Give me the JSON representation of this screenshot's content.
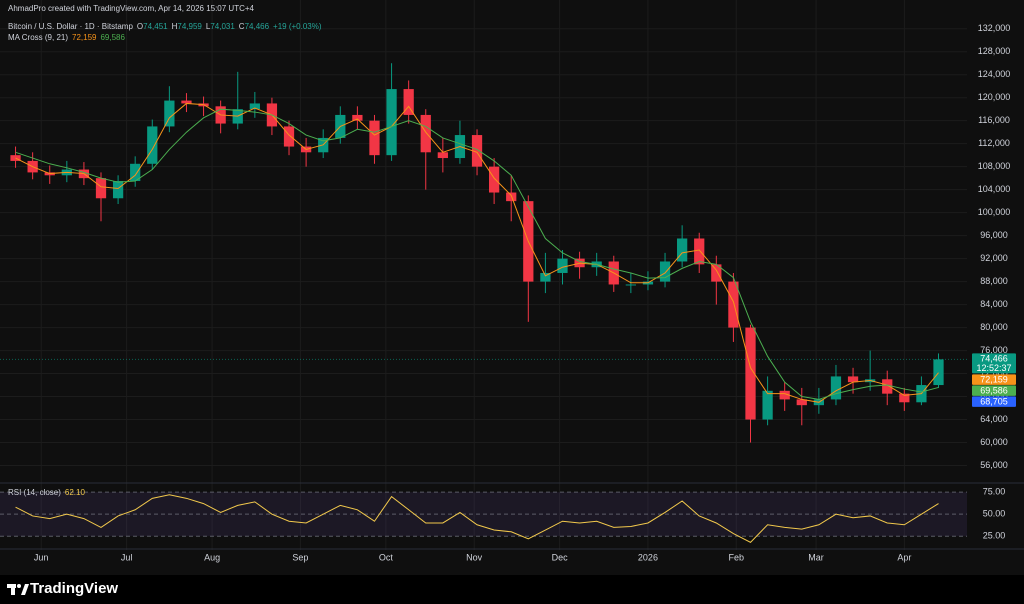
{
  "header": {
    "attribution": "AhmadPro created with TradingView.com, Apr 14, 2026 15:07 UTC+4",
    "symbol": "Bitcoin / U.S. Dollar · 1D · Bitstamp",
    "ohlc": [
      [
        "O",
        "74,451"
      ],
      [
        "H",
        "74,959"
      ],
      [
        "L",
        "74,031"
      ],
      [
        "C",
        "74,466"
      ]
    ],
    "change": "+19 (+0.03%)",
    "indicator": "MA Cross (9, 21)",
    "ma_fast": "72,159",
    "ma_slow": "69,586",
    "rsi_name": "RSI (14, close)",
    "rsi_value": "62.10"
  },
  "price_tags": [
    {
      "text": "74,466",
      "color": "#089981"
    },
    {
      "text": "72,159",
      "color": "#f7931a"
    },
    {
      "text": "69,586",
      "color": "#4caf50"
    },
    {
      "text": "68,705",
      "color": "#2962ff"
    }
  ],
  "countdown": "12:52:37",
  "footer": {
    "brand": "TradingView"
  },
  "chart_data": {
    "type": "candlestick",
    "xlim": [
      0,
      337
    ],
    "xticks": [
      {
        "value": 12,
        "label": "Jun"
      },
      {
        "value": 42,
        "label": "Jul"
      },
      {
        "value": 72,
        "label": "Aug"
      },
      {
        "value": 103,
        "label": "Sep"
      },
      {
        "value": 133,
        "label": "Oct"
      },
      {
        "value": 164,
        "label": "Nov"
      },
      {
        "value": 194,
        "label": "Dec"
      },
      {
        "value": 225,
        "label": "2026"
      },
      {
        "value": 256,
        "label": "Feb"
      },
      {
        "value": 284,
        "label": "Mar"
      },
      {
        "value": 315,
        "label": "Apr"
      }
    ],
    "ylim": [
      54000,
      137000
    ],
    "yticks": [
      {
        "value": 56000,
        "label": "56,000"
      },
      {
        "value": 60000,
        "label": "60,000"
      },
      {
        "value": 64000,
        "label": "64,000"
      },
      {
        "value": 68000,
        "label": "68,000"
      },
      {
        "value": 72000,
        "label": "72,000"
      },
      {
        "value": 76000,
        "label": "76,000"
      },
      {
        "value": 80000,
        "label": "80,000"
      },
      {
        "value": 84000,
        "label": "84,000"
      },
      {
        "value": 88000,
        "label": "88,000"
      },
      {
        "value": 92000,
        "label": "92,000"
      },
      {
        "value": 96000,
        "label": "96,000"
      },
      {
        "value": 100000,
        "label": "100,000"
      },
      {
        "value": 104000,
        "label": "104,000"
      },
      {
        "value": 108000,
        "label": "108,000"
      },
      {
        "value": 112000,
        "label": "112,000"
      },
      {
        "value": 116000,
        "label": "116,000"
      },
      {
        "value": 120000,
        "label": "120,000"
      },
      {
        "value": 124000,
        "label": "124,000"
      },
      {
        "value": 128000,
        "label": "128,000"
      },
      {
        "value": 132000,
        "label": "132,000"
      }
    ],
    "up_color": "#089981",
    "down_color": "#f23645",
    "x": [
      3,
      9,
      15,
      21,
      27,
      33,
      39,
      45,
      51,
      57,
      63,
      69,
      75,
      81,
      87,
      93,
      99,
      105,
      111,
      117,
      123,
      129,
      135,
      141,
      147,
      153,
      159,
      165,
      171,
      177,
      183,
      189,
      195,
      201,
      207,
      213,
      219,
      225,
      231,
      237,
      243,
      249,
      255,
      261,
      267,
      273,
      279,
      285,
      291,
      297,
      303,
      309,
      315,
      321,
      327
    ],
    "open": [
      110000,
      109000,
      107000,
      106500,
      107500,
      106000,
      102500,
      105500,
      108500,
      115000,
      119500,
      119000,
      118500,
      115500,
      118000,
      119000,
      115000,
      111500,
      110500,
      113000,
      117000,
      116000,
      110000,
      121500,
      117000,
      110500,
      109500,
      113500,
      108000,
      103500,
      102000,
      88000,
      89500,
      92000,
      90500,
      91500,
      87500,
      87500,
      88000,
      91500,
      95500,
      91000,
      88000,
      80000,
      64000,
      69000,
      67500,
      66500,
      67500,
      71500,
      70500,
      71000,
      68500,
      67000,
      70000
    ],
    "high": [
      111500,
      110500,
      108200,
      109000,
      108800,
      107000,
      106500,
      109800,
      116200,
      122000,
      120800,
      120200,
      119500,
      124500,
      121000,
      120000,
      116000,
      113000,
      114500,
      118500,
      118500,
      117000,
      126000,
      123000,
      118000,
      113000,
      116000,
      114500,
      109500,
      106500,
      103000,
      93000,
      93500,
      93200,
      93000,
      92500,
      89500,
      89800,
      93000,
      97800,
      96500,
      92500,
      89500,
      80500,
      71500,
      70500,
      69500,
      69500,
      73500,
      73000,
      76000,
      72500,
      69500,
      71500,
      75500
    ],
    "low": [
      107800,
      105800,
      105000,
      105300,
      104800,
      98500,
      101500,
      104500,
      107500,
      114000,
      117500,
      116800,
      113800,
      114500,
      116500,
      113500,
      110000,
      108000,
      109500,
      112000,
      114500,
      108500,
      109000,
      115500,
      104000,
      107000,
      108500,
      106500,
      101500,
      98500,
      81000,
      86000,
      87500,
      88500,
      89000,
      86200,
      86000,
      86500,
      87000,
      90500,
      89500,
      84000,
      77500,
      60000,
      63000,
      65500,
      63000,
      65000,
      66500,
      68500,
      69000,
      66500,
      65500,
      66500,
      69500
    ],
    "close": [
      109000,
      107000,
      106500,
      107500,
      106000,
      102500,
      105500,
      108500,
      115000,
      119500,
      119000,
      118500,
      115500,
      118000,
      119000,
      115000,
      111500,
      110500,
      113000,
      117000,
      116000,
      110000,
      121500,
      117000,
      110500,
      109500,
      113500,
      108000,
      103500,
      102000,
      88000,
      89500,
      92000,
      90500,
      91500,
      87500,
      87500,
      88000,
      91500,
      95500,
      91000,
      88000,
      80000,
      64000,
      69000,
      67500,
      66500,
      67500,
      71500,
      70500,
      71000,
      68500,
      67000,
      70000,
      74466
    ],
    "lines": [
      {
        "color": "#f7931a",
        "values": [
          109500,
          108000,
          106800,
          107000,
          106800,
          104500,
          104200,
          106500,
          111000,
          116500,
          119000,
          118800,
          117000,
          116800,
          118200,
          117000,
          113500,
          111000,
          111800,
          115000,
          116300,
          113500,
          115000,
          118500,
          114000,
          110500,
          111500,
          110500,
          106000,
          103000,
          95000,
          89000,
          90500,
          91200,
          91000,
          89500,
          87800,
          87800,
          89500,
          93000,
          93500,
          90000,
          84500,
          73000,
          68500,
          68500,
          67500,
          67000,
          69000,
          70500,
          70800,
          70000,
          68200,
          68500,
          72159
        ]
      },
      {
        "color": "#4caf50",
        "values": [
          110500,
          109500,
          108500,
          107800,
          107000,
          106000,
          105300,
          105500,
          107500,
          111000,
          114000,
          116500,
          118000,
          117800,
          117500,
          117000,
          115500,
          113500,
          112500,
          113000,
          114500,
          114000,
          115000,
          116000,
          115000,
          113000,
          112000,
          111000,
          109000,
          106500,
          101000,
          95500,
          93000,
          91500,
          91000,
          90200,
          89500,
          88600,
          88700,
          90300,
          91500,
          91000,
          88700,
          81000,
          75000,
          70500,
          68000,
          67500,
          68500,
          69200,
          69800,
          70000,
          69300,
          68800,
          69586
        ]
      }
    ],
    "rsi": {
      "color": "#f2c94c",
      "ylim": [
        15,
        82
      ],
      "yticks": [
        {
          "value": 75,
          "label": "75.00"
        },
        {
          "value": 50,
          "label": "50.00"
        },
        {
          "value": 25,
          "label": "25.00"
        }
      ],
      "values": [
        58,
        48,
        45,
        50,
        45,
        35,
        48,
        55,
        68,
        72,
        68,
        62,
        52,
        60,
        64,
        50,
        42,
        40,
        50,
        60,
        55,
        42,
        70,
        55,
        40,
        40,
        52,
        38,
        32,
        30,
        22,
        32,
        42,
        40,
        42,
        35,
        36,
        40,
        52,
        65,
        48,
        40,
        28,
        18,
        38,
        35,
        33,
        38,
        50,
        46,
        48,
        40,
        38,
        50,
        62.1
      ]
    }
  }
}
